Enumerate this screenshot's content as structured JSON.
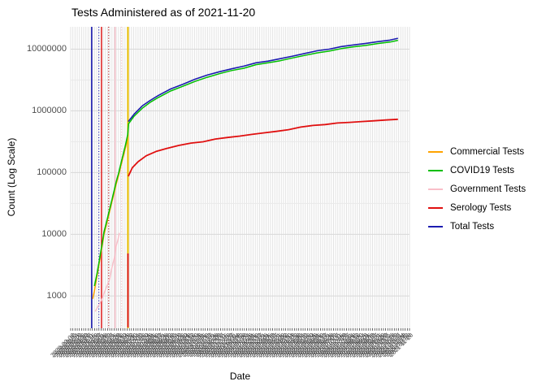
{
  "title": "Tests Administered as of 2021-11-20",
  "y_axis": {
    "label": "Count (Log Scale)",
    "tick_labels": [
      "10000000",
      "1000000",
      "100000",
      "10000",
      "1000"
    ],
    "tick_values": [
      10000000,
      1000000,
      100000,
      10000,
      1000
    ]
  },
  "x_axis": {
    "label": "Date",
    "tick_labels_legible": false,
    "tick_label_note": "dense overlapping 45-degree rotated daily date labels (illegible band)",
    "tick_start": "2020-03-06",
    "tick_end": "2021-11-20",
    "tick_step_days": 4
  },
  "legend": {
    "position": "right",
    "items": [
      {
        "label": "Commercial Tests",
        "color": "#FFA300"
      },
      {
        "label": "COVID19 Tests",
        "color": "#00BE00"
      },
      {
        "label": "Government Tests",
        "color": "#F9BEC8"
      },
      {
        "label": "Serology Tests",
        "color": "#E01010"
      },
      {
        "label": "Total Tests",
        "color": "#1C1CB0"
      }
    ]
  },
  "chart_data": {
    "type": "line",
    "title": "Tests Administered as of 2021-11-20",
    "xlabel": "Date",
    "ylabel": "Count (Log Scale)",
    "y_scale": "log10",
    "ylim": [
      300,
      23000000
    ],
    "x_unit": "fraction_of_date_axis",
    "grid": "dense",
    "legend_position": "right",
    "series": [
      {
        "name": "Commercial Tests",
        "color": "#FFA300",
        "width": 1.5,
        "segments": [
          [
            [
              0.065,
              900
            ],
            [
              0.07,
              1200
            ],
            [
              0.074,
              1650
            ],
            [
              0.079,
              2250
            ],
            [
              0.084,
              3300
            ],
            [
              0.089,
              4900
            ],
            [
              0.094,
              7000
            ],
            [
              0.098,
              9800
            ],
            [
              0.106,
              14500
            ],
            [
              0.113,
              21000
            ],
            [
              0.12,
              30500
            ],
            [
              0.127,
              44000
            ],
            [
              0.134,
              64000
            ],
            [
              0.142,
              92000
            ],
            [
              0.149,
              133000
            ],
            [
              0.156,
              190000
            ],
            [
              0.163,
              270000
            ],
            [
              0.168,
              370000
            ]
          ]
        ]
      },
      {
        "name": "Government Tests",
        "color": "#F9BEC8",
        "width": 1.4,
        "segments": [
          [
            [
              0.072,
              560
            ],
            [
              0.079,
              650
            ],
            [
              0.086,
              760
            ],
            [
              0.094,
              940
            ],
            [
              0.101,
              1200
            ],
            [
              0.108,
              1500
            ],
            [
              0.115,
              1850
            ],
            [
              0.12,
              2600
            ],
            [
              0.125,
              3400
            ],
            [
              0.131,
              4600
            ],
            [
              0.134,
              6400
            ],
            [
              0.139,
              8000
            ],
            [
              0.144,
              10500
            ]
          ]
        ]
      },
      {
        "name": "COVID19 Tests",
        "color": "#00BE00",
        "width": 1.5,
        "segments": [
          [
            [
              0.07,
              1450
            ],
            [
              0.074,
              1850
            ],
            [
              0.079,
              2500
            ],
            [
              0.084,
              3600
            ],
            [
              0.089,
              5300
            ],
            [
              0.094,
              7700
            ],
            [
              0.098,
              10800
            ],
            [
              0.106,
              16000
            ],
            [
              0.113,
              23000
            ],
            [
              0.12,
              33000
            ],
            [
              0.127,
              48000
            ],
            [
              0.134,
              70000
            ],
            [
              0.142,
              100000
            ],
            [
              0.149,
              145000
            ],
            [
              0.156,
              210000
            ],
            [
              0.163,
              300000
            ],
            [
              0.168,
              410000
            ],
            [
              0.169,
              460000
            ],
            [
              0.171,
              620000
            ],
            [
              0.187,
              820000
            ],
            [
              0.211,
              1100000
            ],
            [
              0.235,
              1380000
            ],
            [
              0.259,
              1650000
            ],
            [
              0.295,
              2100000
            ],
            [
              0.331,
              2500000
            ],
            [
              0.367,
              3000000
            ],
            [
              0.403,
              3500000
            ],
            [
              0.439,
              4000000
            ],
            [
              0.475,
              4500000
            ],
            [
              0.511,
              4900000
            ],
            [
              0.547,
              5600000
            ],
            [
              0.583,
              6000000
            ],
            [
              0.619,
              6500000
            ],
            [
              0.655,
              7200000
            ],
            [
              0.691,
              7900000
            ],
            [
              0.727,
              8700000
            ],
            [
              0.763,
              9300000
            ],
            [
              0.799,
              10200000
            ],
            [
              0.835,
              10900000
            ],
            [
              0.871,
              11500000
            ],
            [
              0.906,
              12300000
            ],
            [
              0.942,
              13000000
            ],
            [
              0.966,
              13900000
            ]
          ]
        ]
      },
      {
        "name": "Serology Tests",
        "color": "#E01010",
        "width": 1.8,
        "segments": [
          [
            [
              0.169,
              310
            ],
            [
              0.169,
              4900
            ]
          ],
          [
            [
              0.17,
              87000
            ],
            [
              0.182,
              120000
            ],
            [
              0.199,
              150000
            ],
            [
              0.223,
              187000
            ],
            [
              0.252,
              220000
            ],
            [
              0.283,
              245000
            ],
            [
              0.319,
              275000
            ],
            [
              0.355,
              300000
            ],
            [
              0.391,
              315000
            ],
            [
              0.427,
              350000
            ],
            [
              0.463,
              370000
            ],
            [
              0.499,
              390000
            ],
            [
              0.535,
              415000
            ],
            [
              0.571,
              440000
            ],
            [
              0.607,
              465000
            ],
            [
              0.643,
              495000
            ],
            [
              0.679,
              545000
            ],
            [
              0.715,
              580000
            ],
            [
              0.751,
              600000
            ],
            [
              0.787,
              635000
            ],
            [
              0.823,
              650000
            ],
            [
              0.859,
              670000
            ],
            [
              0.895,
              690000
            ],
            [
              0.93,
              710000
            ],
            [
              0.966,
              730000
            ]
          ]
        ]
      },
      {
        "name": "Total Tests",
        "color": "#1C1CB0",
        "width": 1.6,
        "segments": [
          [
            [
              0.17,
              670000
            ],
            [
              0.187,
              880000
            ],
            [
              0.211,
              1200000
            ],
            [
              0.235,
              1480000
            ],
            [
              0.259,
              1780000
            ],
            [
              0.295,
              2260000
            ],
            [
              0.331,
              2700000
            ],
            [
              0.367,
              3250000
            ],
            [
              0.403,
              3800000
            ],
            [
              0.439,
              4300000
            ],
            [
              0.475,
              4800000
            ],
            [
              0.511,
              5300000
            ],
            [
              0.547,
              6000000
            ],
            [
              0.583,
              6400000
            ],
            [
              0.619,
              7000000
            ],
            [
              0.655,
              7700000
            ],
            [
              0.691,
              8500000
            ],
            [
              0.727,
              9400000
            ],
            [
              0.763,
              10000000
            ],
            [
              0.799,
              11000000
            ],
            [
              0.835,
              11700000
            ],
            [
              0.871,
              12400000
            ],
            [
              0.906,
              13200000
            ],
            [
              0.942,
              14000000
            ],
            [
              0.966,
              15000000
            ]
          ]
        ]
      }
    ],
    "event_vlines": [
      {
        "color": "#1C1CB0",
        "style": "solid",
        "x": 0.062,
        "width": 1.6
      },
      {
        "color": "#1C1CB0",
        "style": "dotted",
        "x": 0.083,
        "width": 1.2
      },
      {
        "color": "#E01010",
        "style": "solid",
        "x": 0.091,
        "width": 1.4
      },
      {
        "color": "#B01010",
        "style": "dotted",
        "x": 0.112,
        "width": 1.2
      },
      {
        "color": "#F9BEC8",
        "style": "solid",
        "x": 0.131,
        "width": 1.4
      },
      {
        "color": "#F9BEC8",
        "style": "dotted",
        "x": 0.15,
        "width": 1.2
      },
      {
        "color": "#EEC200",
        "style": "solid",
        "x": 0.169,
        "width": 2.0
      }
    ]
  }
}
